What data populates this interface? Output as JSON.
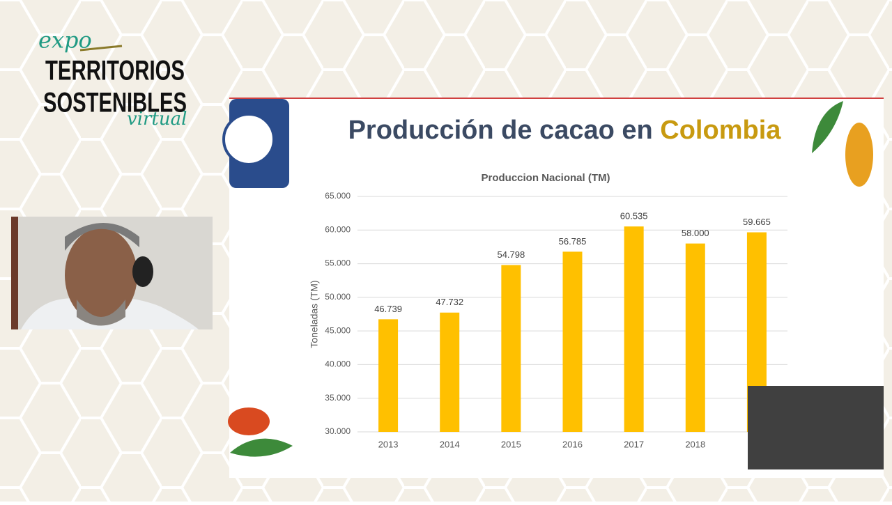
{
  "event": {
    "prefix": "expo",
    "line1": "TERRITORIOS",
    "line2": "SOSTENIBLES",
    "suffix": "virtual"
  },
  "slide": {
    "title_prefix": "Producción de cacao en",
    "title_highlight": "Colombia"
  },
  "chart_data": {
    "type": "bar",
    "title": "Produccion Nacional (TM)",
    "y_label": "Toneladas (TM)",
    "categories": [
      "2013",
      "2014",
      "2015",
      "2016",
      "2017",
      "2018",
      null
    ],
    "values": [
      46739,
      47732,
      54798,
      56785,
      60535,
      58000,
      59665
    ],
    "value_labels": [
      "46.739",
      "47.732",
      "54.798",
      "56.785",
      "60.535",
      "58.000",
      "59.665"
    ],
    "color": "#ffc000",
    "ylim": [
      30000,
      65000
    ],
    "yticks": [
      {
        "value": 30000,
        "label": "30.000"
      },
      {
        "value": 35000,
        "label": "35.000"
      },
      {
        "value": 40000,
        "label": "40.000"
      },
      {
        "value": 45000,
        "label": "45.000"
      },
      {
        "value": 50000,
        "label": "50.000"
      },
      {
        "value": 55000,
        "label": "55.000"
      },
      {
        "value": 60000,
        "label": "60.000"
      },
      {
        "value": 65000,
        "label": "65.000"
      }
    ],
    "grid": true
  }
}
